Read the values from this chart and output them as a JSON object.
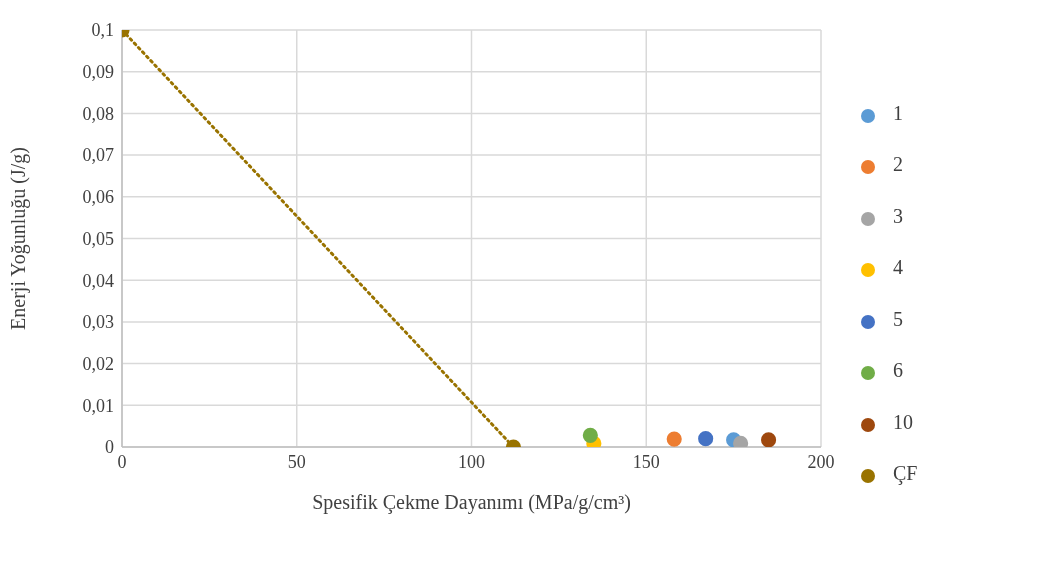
{
  "chart_data": {
    "type": "scatter",
    "xlabel": "Spesifik Çekme Dayanımı (MPa/g/cm³)",
    "ylabel": "Enerji Yoğunluğu (J/g)",
    "xlim": [
      0,
      200
    ],
    "xticks": [
      0,
      50,
      100,
      150,
      200
    ],
    "ylim": [
      0,
      0.1
    ],
    "yticks": [
      {
        "value": 0,
        "label": "0"
      },
      {
        "value": 0.01,
        "label": "0,01"
      },
      {
        "value": 0.02,
        "label": "0,02"
      },
      {
        "value": 0.03,
        "label": "0,03"
      },
      {
        "value": 0.04,
        "label": "0,04"
      },
      {
        "value": 0.05,
        "label": "0,05"
      },
      {
        "value": 0.06,
        "label": "0,06"
      },
      {
        "value": 0.07,
        "label": "0,07"
      },
      {
        "value": 0.08,
        "label": "0,08"
      },
      {
        "value": 0.09,
        "label": "0,09"
      },
      {
        "value": 0.1,
        "label": "0,1"
      }
    ],
    "grid": true,
    "legend": "right",
    "marker": "circle",
    "series": [
      {
        "name": "1",
        "color": "#5b9bd5",
        "x": [
          175
        ],
        "values": [
          0.0017
        ]
      },
      {
        "name": "2",
        "color": "#ed7d31",
        "x": [
          158
        ],
        "values": [
          0.0019
        ]
      },
      {
        "name": "3",
        "color": "#a5a5a5",
        "x": [
          177
        ],
        "values": [
          0.0009
        ]
      },
      {
        "name": "4",
        "color": "#ffc000",
        "x": [
          135
        ],
        "values": [
          0.0009
        ]
      },
      {
        "name": "5",
        "color": "#4472c4",
        "x": [
          167
        ],
        "values": [
          0.002
        ]
      },
      {
        "name": "6",
        "color": "#70ad47",
        "x": [
          134
        ],
        "values": [
          0.0028
        ]
      },
      {
        "name": "10",
        "color": "#9e480e",
        "x": [
          185
        ],
        "values": [
          0.0017
        ]
      },
      {
        "name": "ÇF",
        "type": "line",
        "color": "#997300",
        "x": [
          0,
          112
        ],
        "values": [
          0.1,
          0
        ],
        "line_style": "dotted"
      }
    ]
  }
}
